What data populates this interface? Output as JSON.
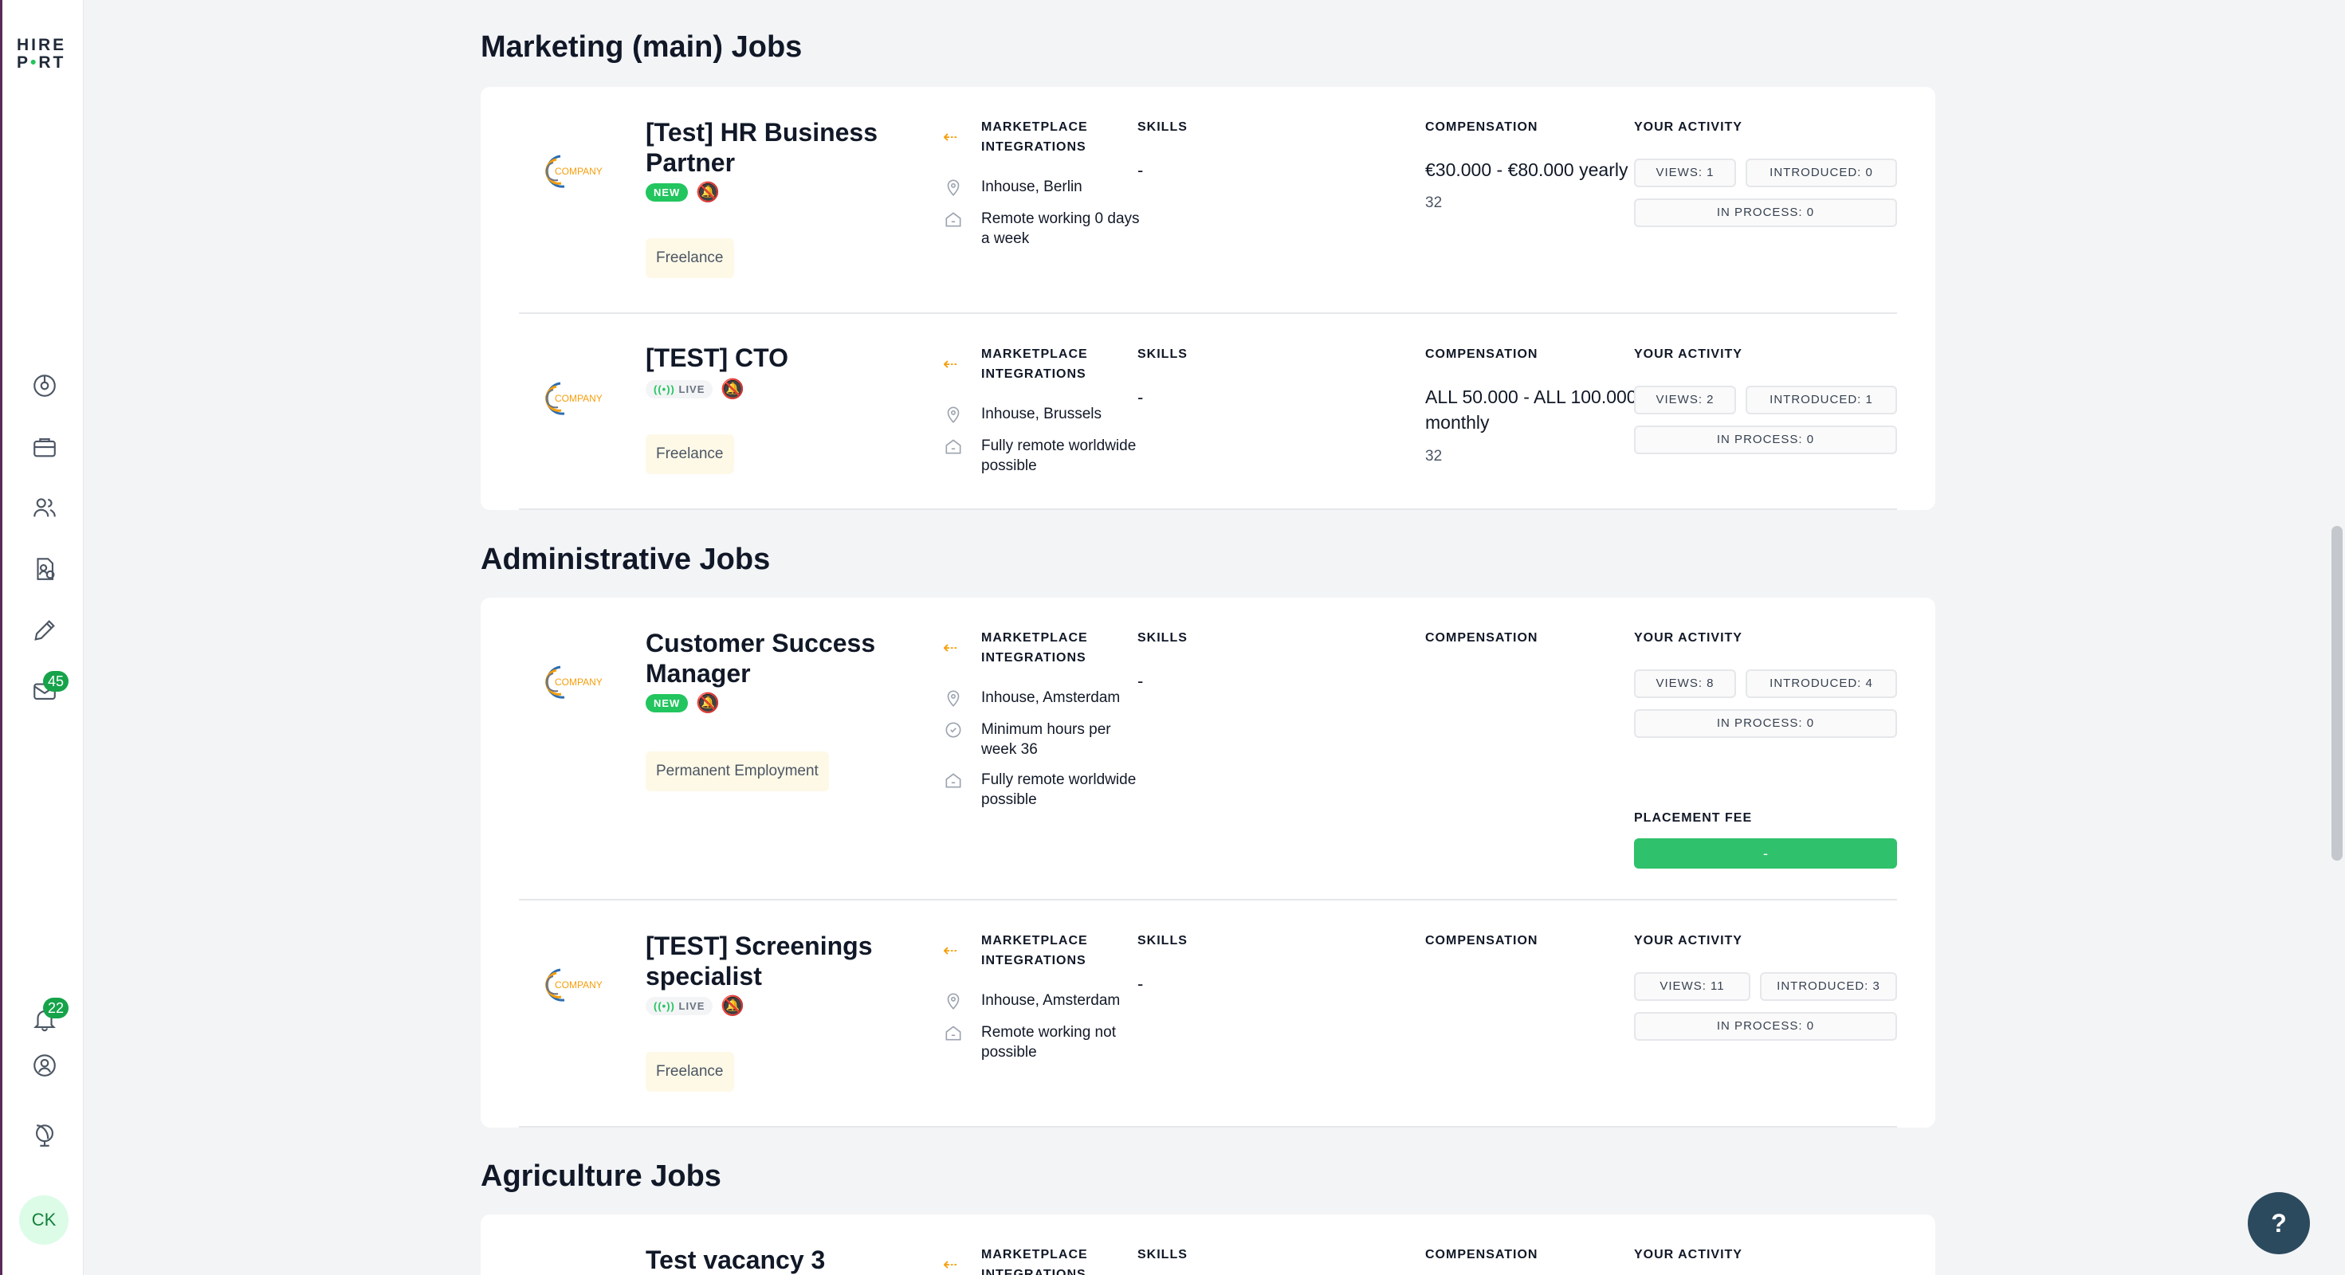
{
  "sidebar": {
    "logo_line1": "HIRE",
    "logo_line2_a": "P",
    "logo_line2_dot": "•",
    "logo_line2_b": "RT",
    "items": [
      {
        "name": "dashboard-icon"
      },
      {
        "name": "briefcase-icon"
      },
      {
        "name": "people-icon"
      },
      {
        "name": "candidate-file-icon"
      },
      {
        "name": "pencil-icon"
      },
      {
        "name": "mail-icon",
        "badge": "45"
      }
    ],
    "notifications_badge": "22",
    "avatar": "CK"
  },
  "help_label": "?",
  "labels": {
    "marketplace_line1": "MARKETPLACE",
    "marketplace_line2": "INTEGRATIONS",
    "skills": "SKILLS",
    "compensation": "COMPENSATION",
    "your_activity": "YOUR ACTIVITY",
    "placement_fee": "PLACEMENT FEE"
  },
  "sections": [
    {
      "title": "Marketing (main) Jobs",
      "jobs": [
        {
          "title_line1": "[Test] HR Business",
          "title_line2": "Partner",
          "status": "NEW",
          "type": "Freelance",
          "location": "Inhouse, Berlin",
          "remote": "Remote working 0 days a week",
          "skills": "-",
          "compensation": "€30.000 - €80.000 yearly",
          "comp_sub": "32",
          "views": "VIEWS: 1",
          "introduced": "INTRODUCED: 0",
          "in_process": "IN PROCESS: 0"
        },
        {
          "title_line1": "[TEST] CTO",
          "status": "LIVE",
          "type": "Freelance",
          "location": "Inhouse, Brussels",
          "remote": "Fully remote worldwide possible",
          "skills": "-",
          "compensation": "ALL 50.000 - ALL 100.000 monthly",
          "comp_sub": "32",
          "views": "VIEWS: 2",
          "introduced": "INTRODUCED: 1",
          "in_process": "IN PROCESS: 0"
        }
      ]
    },
    {
      "title": "Administrative Jobs",
      "jobs": [
        {
          "title_line1": "Customer Success",
          "title_line2": "Manager",
          "status": "NEW",
          "type": "Permanent Employment",
          "location": "Inhouse, Amsterdam",
          "hours": "Minimum hours per week 36",
          "remote": "Fully remote worldwide possible",
          "skills": "-",
          "views": "VIEWS: 8",
          "introduced": "INTRODUCED: 4",
          "in_process": "IN PROCESS: 0",
          "placement_fee": "-"
        },
        {
          "title_line1": "[TEST] Screenings",
          "title_line2": "specialist",
          "status": "LIVE",
          "type": "Freelance",
          "location": "Inhouse, Amsterdam",
          "remote": "Remote working not possible",
          "skills": "-",
          "views": "VIEWS: 11",
          "introduced": "INTRODUCED: 3",
          "in_process": "IN PROCESS: 0"
        }
      ]
    },
    {
      "title": "Agriculture Jobs",
      "jobs": [
        {
          "title_line1": "Test vacancy 3"
        }
      ]
    }
  ],
  "company_logo_text": "COMPANY"
}
